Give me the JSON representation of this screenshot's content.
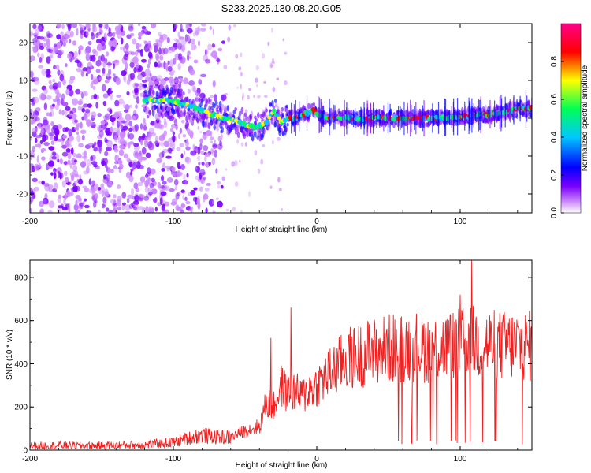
{
  "title": "S233.2025.130.08.20.G05",
  "chart_data": [
    {
      "type": "heatmap",
      "xlabel": "Height of straight line (km)",
      "ylabel": "Frequency (Hz)",
      "xlim": [
        -200,
        150
      ],
      "ylim": [
        -25,
        25
      ],
      "x_ticks": [
        -200,
        -100,
        0,
        100
      ],
      "y_ticks": [
        -20,
        -10,
        0,
        10,
        20
      ],
      "colorbar": {
        "label": "Normalized spectral amplitude",
        "range": [
          0,
          1
        ],
        "ticks": [
          "0.0",
          "0.2",
          "0.4",
          "0.6",
          "0.8"
        ],
        "colors": [
          "#ffffff",
          "#cc88ff",
          "#7a00ff",
          "#0000ff",
          "#00c8ff",
          "#00ff55",
          "#ffff00",
          "#ff0000",
          "#ff0088"
        ]
      },
      "ridge": {
        "x": [
          -120,
          -100,
          -85,
          -70,
          -60,
          -50,
          -42,
          -35,
          -30,
          -25,
          -20,
          -15,
          -10,
          -5,
          -2,
          0,
          5,
          20,
          40,
          60,
          80,
          100,
          120,
          130,
          140,
          150
        ],
        "y": [
          5,
          4.5,
          3,
          0.5,
          -0.5,
          -1.5,
          -2.5,
          -1,
          2,
          -1,
          0,
          0,
          1,
          1.5,
          2.5,
          1,
          0.5,
          0,
          0,
          0,
          0,
          0.5,
          1,
          1.5,
          2.5,
          2.5
        ]
      },
      "noise_region_x": [
        -200,
        -100
      ],
      "grid": false
    },
    {
      "type": "line",
      "xlabel": "Height of straight line (km)",
      "ylabel": "SNR (10 * v/v)",
      "xlim": [
        -200,
        150
      ],
      "ylim": [
        0,
        880
      ],
      "x_ticks": [
        -200,
        -100,
        0,
        100
      ],
      "y_ticks": [
        0,
        200,
        400,
        600,
        800
      ],
      "color": "#ee2020",
      "x": [
        -200,
        -180,
        -160,
        -140,
        -120,
        -100,
        -90,
        -80,
        -70,
        -60,
        -50,
        -40,
        -35,
        -30,
        -25,
        -20,
        -15,
        -10,
        -5,
        0,
        10,
        20,
        30,
        40,
        50,
        60,
        70,
        80,
        90,
        100,
        105,
        110,
        120,
        130,
        140,
        150
      ],
      "y": [
        20,
        22,
        20,
        23,
        25,
        35,
        55,
        70,
        60,
        60,
        90,
        110,
        220,
        200,
        300,
        260,
        270,
        250,
        280,
        300,
        360,
        420,
        440,
        460,
        470,
        480,
        480,
        470,
        480,
        490,
        500,
        500,
        490,
        480,
        490,
        480
      ],
      "spikes": [
        {
          "x": -32,
          "y": 520
        },
        {
          "x": -18,
          "y": 660
        },
        {
          "x": 100,
          "y": 720
        },
        {
          "x": 108,
          "y": 880
        }
      ],
      "dropouts_from_x": 40,
      "grid": false
    }
  ]
}
